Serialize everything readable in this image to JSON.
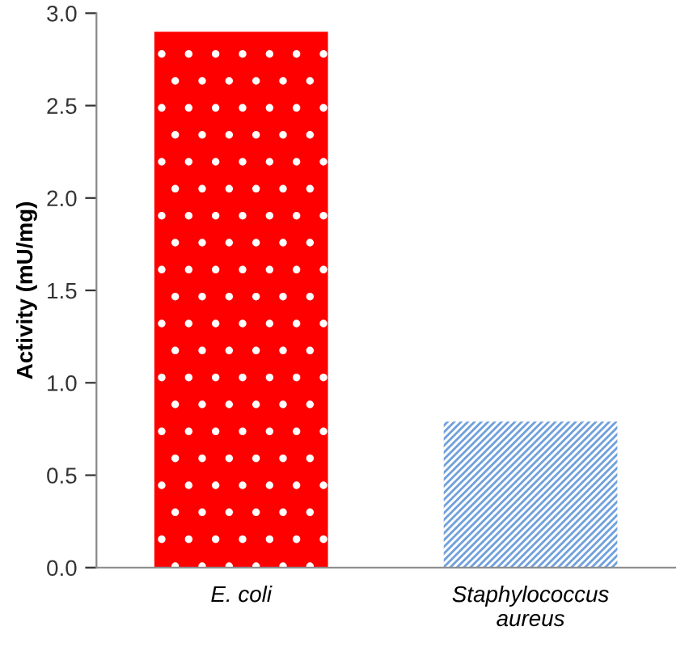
{
  "chart_data": {
    "type": "bar",
    "ylabel": "Activity (mU/mg)",
    "categories": [
      "E. coli",
      "Staphylococcus\naureus"
    ],
    "values": [
      2.9,
      0.79
    ],
    "colors": [
      "#ff0000",
      "#6fa0dc"
    ],
    "ylim": [
      0,
      3.0
    ],
    "yticks": [
      {
        "value": 0,
        "label": "0.0"
      },
      {
        "value": 0.5,
        "label": "0.5"
      },
      {
        "value": 1.0,
        "label": "1.0"
      },
      {
        "value": 1.5,
        "label": "1.5"
      },
      {
        "value": 2.0,
        "label": "2.0"
      },
      {
        "value": 2.5,
        "label": "2.5"
      },
      {
        "value": 3.0,
        "label": "3.0"
      }
    ],
    "grid": false,
    "legend": false
  }
}
